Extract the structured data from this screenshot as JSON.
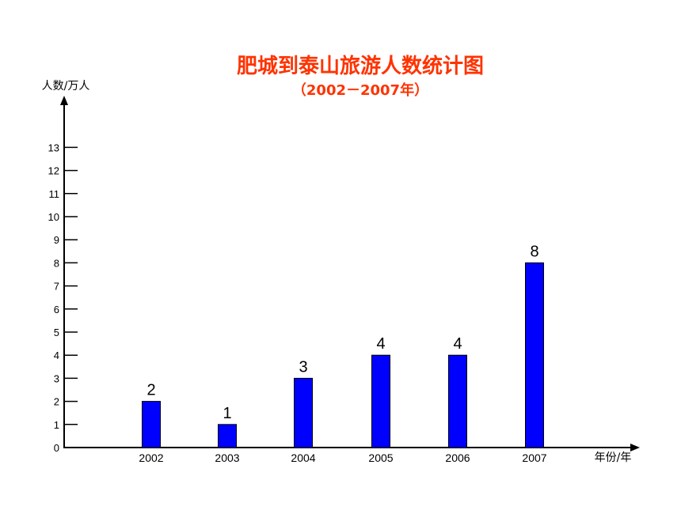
{
  "chart_data": {
    "type": "bar",
    "title": "肥城到泰山旅游人数统计图",
    "subtitle": "（2002－2007年）",
    "xlabel": "年份/年",
    "ylabel": "人数/万人",
    "categories": [
      "2002",
      "2003",
      "2004",
      "2005",
      "2006",
      "2007"
    ],
    "values": [
      2,
      1,
      3,
      4,
      4,
      8
    ],
    "data_labels": [
      "2",
      "1",
      "3",
      "4",
      "4",
      "8"
    ],
    "yticks": [
      "0",
      "1",
      "2",
      "3",
      "4",
      "5",
      "6",
      "7",
      "8",
      "9",
      "10",
      "11",
      "12",
      "13"
    ],
    "ylim": [
      0,
      13
    ],
    "bar_color": "#0000ff",
    "title_color": "#ff3300",
    "grid": false,
    "legend": "none"
  }
}
